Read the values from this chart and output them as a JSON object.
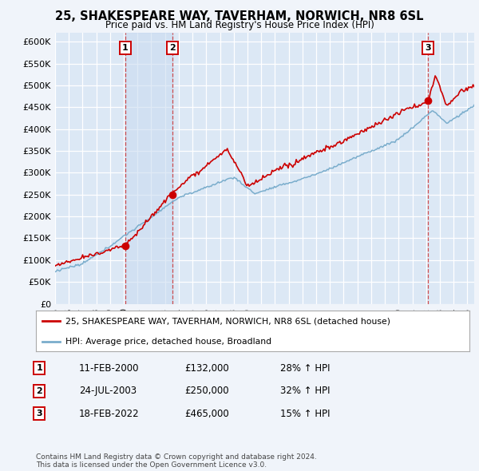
{
  "title": "25, SHAKESPEARE WAY, TAVERHAM, NORWICH, NR8 6SL",
  "subtitle": "Price paid vs. HM Land Registry's House Price Index (HPI)",
  "background_color": "#f0f4fa",
  "plot_bg_color": "#dce8f5",
  "grid_color": "#ffffff",
  "yticks": [
    0,
    50000,
    100000,
    150000,
    200000,
    250000,
    300000,
    350000,
    400000,
    450000,
    500000,
    550000,
    600000
  ],
  "ytick_labels": [
    "£0",
    "£50K",
    "£100K",
    "£150K",
    "£200K",
    "£250K",
    "£300K",
    "£350K",
    "£400K",
    "£450K",
    "£500K",
    "£550K",
    "£600K"
  ],
  "xmin": 1995.0,
  "xmax": 2025.5,
  "ymin": 0,
  "ymax": 620000,
  "sale_dates": [
    2000.11,
    2003.56,
    2022.12
  ],
  "sale_prices": [
    132000,
    250000,
    465000
  ],
  "sale_labels": [
    "1",
    "2",
    "3"
  ],
  "shaded_region": [
    2000.11,
    2003.56
  ],
  "legend_entries": [
    "25, SHAKESPEARE WAY, TAVERHAM, NORWICH, NR8 6SL (detached house)",
    "HPI: Average price, detached house, Broadland"
  ],
  "table_rows": [
    [
      "1",
      "11-FEB-2000",
      "£132,000",
      "28% ↑ HPI"
    ],
    [
      "2",
      "24-JUL-2003",
      "£250,000",
      "32% ↑ HPI"
    ],
    [
      "3",
      "18-FEB-2022",
      "£465,000",
      "15% ↑ HPI"
    ]
  ],
  "footer": "Contains HM Land Registry data © Crown copyright and database right 2024.\nThis data is licensed under the Open Government Licence v3.0.",
  "red_line_color": "#cc0000",
  "blue_line_color": "#7aadcc",
  "vline_color": "#cc3333",
  "label_box_color": "#cc0000",
  "shade_color": "#c8daf0"
}
